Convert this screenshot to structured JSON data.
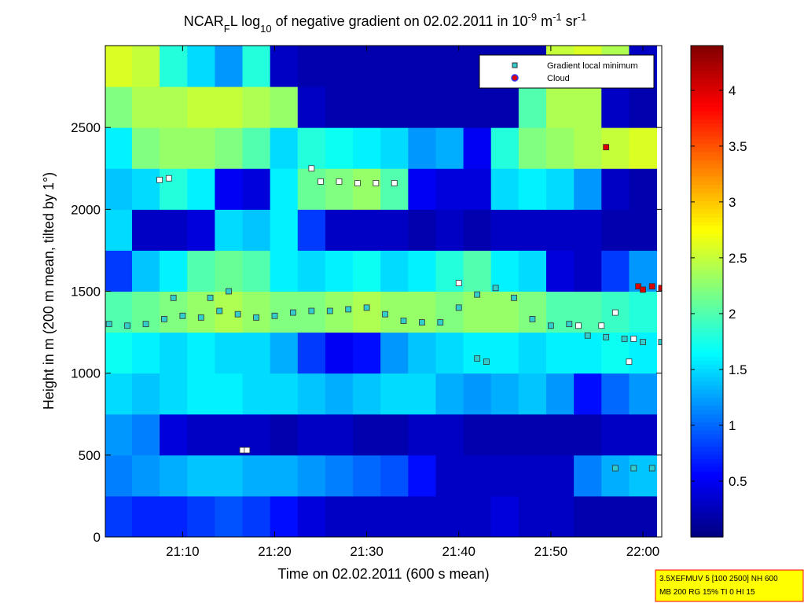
{
  "chart_data": {
    "type": "heatmap",
    "title_parts": [
      {
        "text": "NCAR",
        "shift": "none"
      },
      {
        "text": "F",
        "shift": "sub"
      },
      {
        "text": "L log",
        "shift": "none"
      },
      {
        "text": "10",
        "shift": "sub"
      },
      {
        "text": " of negative gradient on 02.02.2011 in 10",
        "shift": "none"
      },
      {
        "text": "-9",
        "shift": "sup"
      },
      {
        "text": " m",
        "shift": "none"
      },
      {
        "text": "-1",
        "shift": "sup"
      },
      {
        "text": " sr",
        "shift": "none"
      },
      {
        "text": "-1",
        "shift": "sup"
      }
    ],
    "x_label": "Time on 02.02.2011 (600 s mean)",
    "y_label": "Height in m (200 m mean, tilted by 1°)",
    "xlim": [
      1261.6,
      1322.05
    ],
    "xticks": [
      {
        "value": 1270,
        "label": "21:10"
      },
      {
        "value": 1280,
        "label": "21:20"
      },
      {
        "value": 1290,
        "label": "21:30"
      },
      {
        "value": 1300,
        "label": "21:40"
      },
      {
        "value": 1310,
        "label": "21:50"
      },
      {
        "value": 1320,
        "label": "22:00"
      }
    ],
    "ylim": [
      0,
      3000
    ],
    "yticks": [
      0,
      500,
      1000,
      1500,
      2000,
      2500
    ],
    "colormap": "jet",
    "clim": [
      0,
      4.4
    ],
    "cticks": [
      0.5,
      1,
      1.5,
      2,
      2.5,
      3,
      3.5,
      4
    ],
    "z_x": [
      1263,
      1266,
      1269,
      1272,
      1275,
      1278,
      1281,
      1284,
      1287,
      1290,
      1293,
      1296,
      1299,
      1302,
      1305,
      1308,
      1311,
      1314,
      1317,
      1320
    ],
    "z_y": [
      125,
      375,
      625,
      875,
      1125,
      1375,
      1625,
      1875,
      2125,
      2375,
      2625,
      2875
    ],
    "z": [
      [
        0.8,
        0.7,
        0.7,
        0.8,
        0.9,
        0.8,
        0.6,
        0.4,
        0.3,
        0.3,
        0.3,
        0.3,
        0.3,
        0.3,
        0.4,
        0.3,
        0.3,
        0.2,
        0.2,
        0.2
      ],
      [
        1.1,
        1.2,
        1.3,
        1.4,
        1.4,
        1.3,
        1.3,
        1.2,
        1.1,
        1.0,
        0.9,
        0.6,
        0.3,
        0.3,
        0.3,
        0.3,
        0.3,
        1.1,
        1.3,
        1.4
      ],
      [
        1.2,
        1.1,
        0.4,
        0.3,
        0.3,
        0.3,
        0.2,
        0.3,
        0.3,
        0.2,
        0.2,
        0.3,
        0.3,
        0.2,
        0.2,
        0.2,
        0.2,
        0.2,
        0.3,
        0.3
      ],
      [
        1.5,
        1.4,
        1.5,
        1.6,
        1.6,
        1.5,
        1.5,
        1.4,
        1.3,
        1.4,
        1.5,
        1.5,
        1.3,
        1.2,
        1.3,
        1.4,
        1.2,
        0.6,
        1.0,
        1.2
      ],
      [
        1.7,
        1.6,
        1.5,
        1.6,
        1.5,
        1.5,
        1.3,
        0.8,
        0.5,
        0.6,
        1.2,
        1.4,
        1.5,
        1.6,
        1.6,
        1.5,
        1.6,
        1.6,
        1.7,
        1.6
      ],
      [
        2.0,
        2.1,
        2.2,
        2.3,
        2.4,
        2.3,
        2.2,
        2.2,
        2.3,
        2.4,
        2.3,
        2.3,
        2.2,
        2.3,
        2.3,
        2.2,
        2.0,
        2.0,
        1.9,
        1.8
      ],
      [
        0.8,
        1.4,
        1.6,
        2.0,
        2.1,
        2.0,
        1.6,
        1.5,
        1.6,
        1.7,
        1.5,
        1.6,
        1.8,
        2.0,
        1.6,
        1.5,
        0.4,
        0.3,
        0.8,
        1.2
      ],
      [
        1.5,
        0.3,
        0.3,
        0.4,
        1.5,
        1.4,
        1.6,
        0.8,
        0.3,
        0.3,
        0.3,
        0.2,
        0.3,
        0.2,
        0.3,
        0.3,
        0.3,
        0.3,
        0.2,
        0.2
      ],
      [
        1.4,
        1.5,
        1.8,
        1.6,
        0.5,
        0.4,
        1.6,
        2.1,
        2.2,
        2.3,
        2.0,
        0.5,
        0.4,
        0.4,
        1.5,
        1.6,
        1.5,
        1.2,
        0.3,
        0.2
      ],
      [
        1.6,
        2.2,
        2.3,
        2.3,
        2.2,
        2.0,
        1.5,
        1.8,
        1.7,
        1.6,
        1.5,
        1.2,
        1.3,
        0.5,
        1.8,
        2.2,
        2.3,
        2.4,
        2.5,
        2.6
      ],
      [
        2.2,
        2.4,
        2.4,
        2.5,
        2.5,
        2.4,
        2.3,
        0.3,
        0.2,
        0.2,
        0.2,
        0.2,
        0.2,
        0.2,
        0.2,
        2.0,
        2.4,
        2.4,
        0.3,
        0.2
      ],
      [
        2.6,
        2.5,
        1.8,
        1.5,
        1.2,
        1.8,
        0.3,
        0.2,
        0.2,
        0.2,
        0.2,
        0.2,
        0.2,
        0.2,
        0.2,
        0.2,
        2.5,
        2.6,
        2.4,
        0.3
      ]
    ],
    "series": [
      {
        "name": "Gradient local minimum",
        "color": "#33cccc",
        "legend_marker": "square",
        "x": [
          1262,
          1264,
          1266,
          1268,
          1270,
          1272,
          1274,
          1276,
          1278,
          1280,
          1282,
          1284,
          1286,
          1288,
          1290,
          1292,
          1294,
          1296,
          1298,
          1300,
          1302,
          1304,
          1306,
          1308,
          1310,
          1312,
          1314,
          1316,
          1318,
          1320,
          1322,
          1269,
          1273,
          1275,
          1302,
          1303,
          1317,
          1319,
          1321
        ],
        "values": [
          1300,
          1290,
          1300,
          1330,
          1350,
          1340,
          1380,
          1360,
          1340,
          1350,
          1370,
          1380,
          1380,
          1390,
          1400,
          1360,
          1320,
          1310,
          1310,
          1400,
          1480,
          1520,
          1460,
          1330,
          1290,
          1300,
          1230,
          1220,
          1210,
          1190,
          1190,
          1460,
          1460,
          1500,
          1090,
          1070,
          420,
          420,
          420
        ]
      },
      {
        "color": "#ffffff",
        "x": [
          1267.5,
          1268.5,
          1284,
          1285,
          1287,
          1289,
          1291,
          1293,
          1276.5,
          1277,
          1318.5,
          1317,
          1300,
          1313,
          1319,
          1315.5
        ],
        "values": [
          2180,
          2190,
          2250,
          2170,
          2170,
          2160,
          2160,
          2160,
          530,
          530,
          1070,
          1370,
          1550,
          1290,
          1210,
          1290
        ]
      },
      {
        "name": "Cloud",
        "color": "#dd0000",
        "legend_marker": "circle",
        "x": [
          1316,
          1319.5,
          1320,
          1321,
          1322
        ],
        "values": [
          2380,
          1530,
          1510,
          1530,
          1520
        ]
      }
    ],
    "legend": "upper right",
    "footnote": [
      "3.5XEFMUV 5 [100 2500] NH 600",
      "MB 200 RG 15% TI 0 HI 15"
    ]
  }
}
